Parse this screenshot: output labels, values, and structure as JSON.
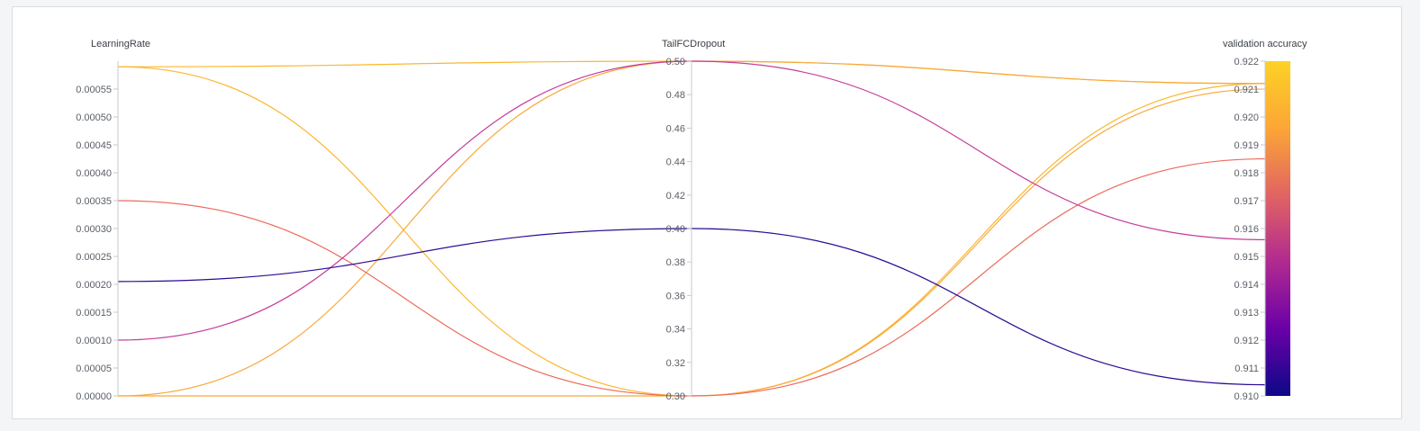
{
  "chart_data": {
    "type": "parallel-coordinates",
    "axes": [
      {
        "name": "LearningRate",
        "range": [
          0,
          0.0006
        ],
        "ticks": [
          "0.00000",
          "0.00005",
          "0.00010",
          "0.00015",
          "0.00020",
          "0.00025",
          "0.00030",
          "0.00035",
          "0.00040",
          "0.00045",
          "0.00050",
          "0.00055"
        ]
      },
      {
        "name": "TailFCDropout",
        "range": [
          0.3,
          0.5
        ],
        "ticks": [
          "0.30",
          "0.32",
          "0.34",
          "0.36",
          "0.38",
          "0.40",
          "0.42",
          "0.44",
          "0.46",
          "0.48",
          "0.50"
        ]
      },
      {
        "name": "validation accuracy",
        "range": [
          0.91,
          0.922
        ],
        "ticks": [
          "0.910",
          "0.911",
          "0.912",
          "0.913",
          "0.914",
          "0.915",
          "0.916",
          "0.917",
          "0.918",
          "0.919",
          "0.920",
          "0.921",
          "0.922"
        ]
      }
    ],
    "runs": [
      {
        "values": [
          0.00059,
          0.5,
          0.9212
        ],
        "color": "#fbb72f"
      },
      {
        "values": [
          0.00059,
          0.3,
          0.9212
        ],
        "color": "#fbb72f"
      },
      {
        "values": [
          0.0,
          0.5,
          0.9212
        ],
        "color": "#f9a83a"
      },
      {
        "values": [
          0.0,
          0.3,
          0.921
        ],
        "color": "#f9a83a"
      },
      {
        "values": [
          0.00035,
          0.3,
          0.9185
        ],
        "color": "#ec6b5c"
      },
      {
        "values": [
          0.0001,
          0.5,
          0.9156
        ],
        "color": "#c43c9a"
      },
      {
        "values": [
          0.000205,
          0.4,
          0.9104
        ],
        "color": "#2c0a93"
      }
    ],
    "colorbar": {
      "axis": "validation accuracy",
      "stops": [
        "#0d0887",
        "#6a00a8",
        "#b12a90",
        "#e16462",
        "#fca636",
        "#f0f921"
      ]
    },
    "grid": false,
    "legend": "none"
  }
}
